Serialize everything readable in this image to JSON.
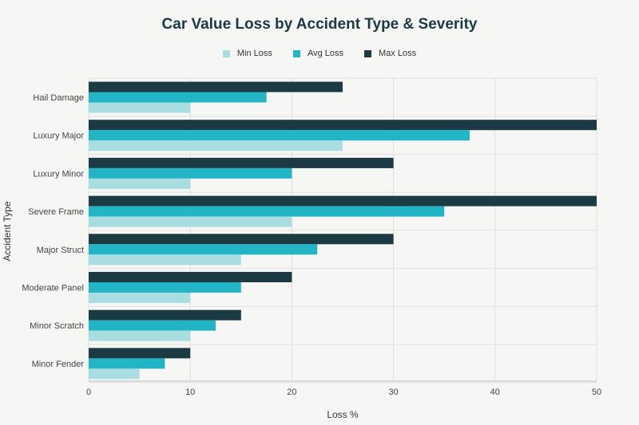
{
  "chart_data": {
    "type": "bar",
    "orientation": "horizontal",
    "title": "Car Value Loss by Accident Type & Severity",
    "xlabel": "Loss %",
    "ylabel": "Accident Type",
    "xlim": [
      0,
      50
    ],
    "xticks": [
      0,
      10,
      20,
      30,
      40,
      50
    ],
    "grid": true,
    "legend_position": "top-center",
    "categories": [
      "Hail Damage",
      "Luxury Major",
      "Luxury Minor",
      "Severe Frame",
      "Major Struct",
      "Moderate Panel",
      "Minor Scratch",
      "Minor Fender"
    ],
    "series": [
      {
        "name": "Min Loss",
        "color": "#a8dde2",
        "values": [
          10,
          25,
          10,
          20,
          15,
          10,
          10,
          5
        ]
      },
      {
        "name": "Avg Loss",
        "color": "#21b5c6",
        "values": [
          17.5,
          37.5,
          20,
          35,
          22.5,
          15,
          12.5,
          7.5
        ]
      },
      {
        "name": "Max Loss",
        "color": "#1c3a44",
        "values": [
          25,
          50,
          30,
          50,
          30,
          20,
          15,
          10
        ]
      }
    ]
  }
}
